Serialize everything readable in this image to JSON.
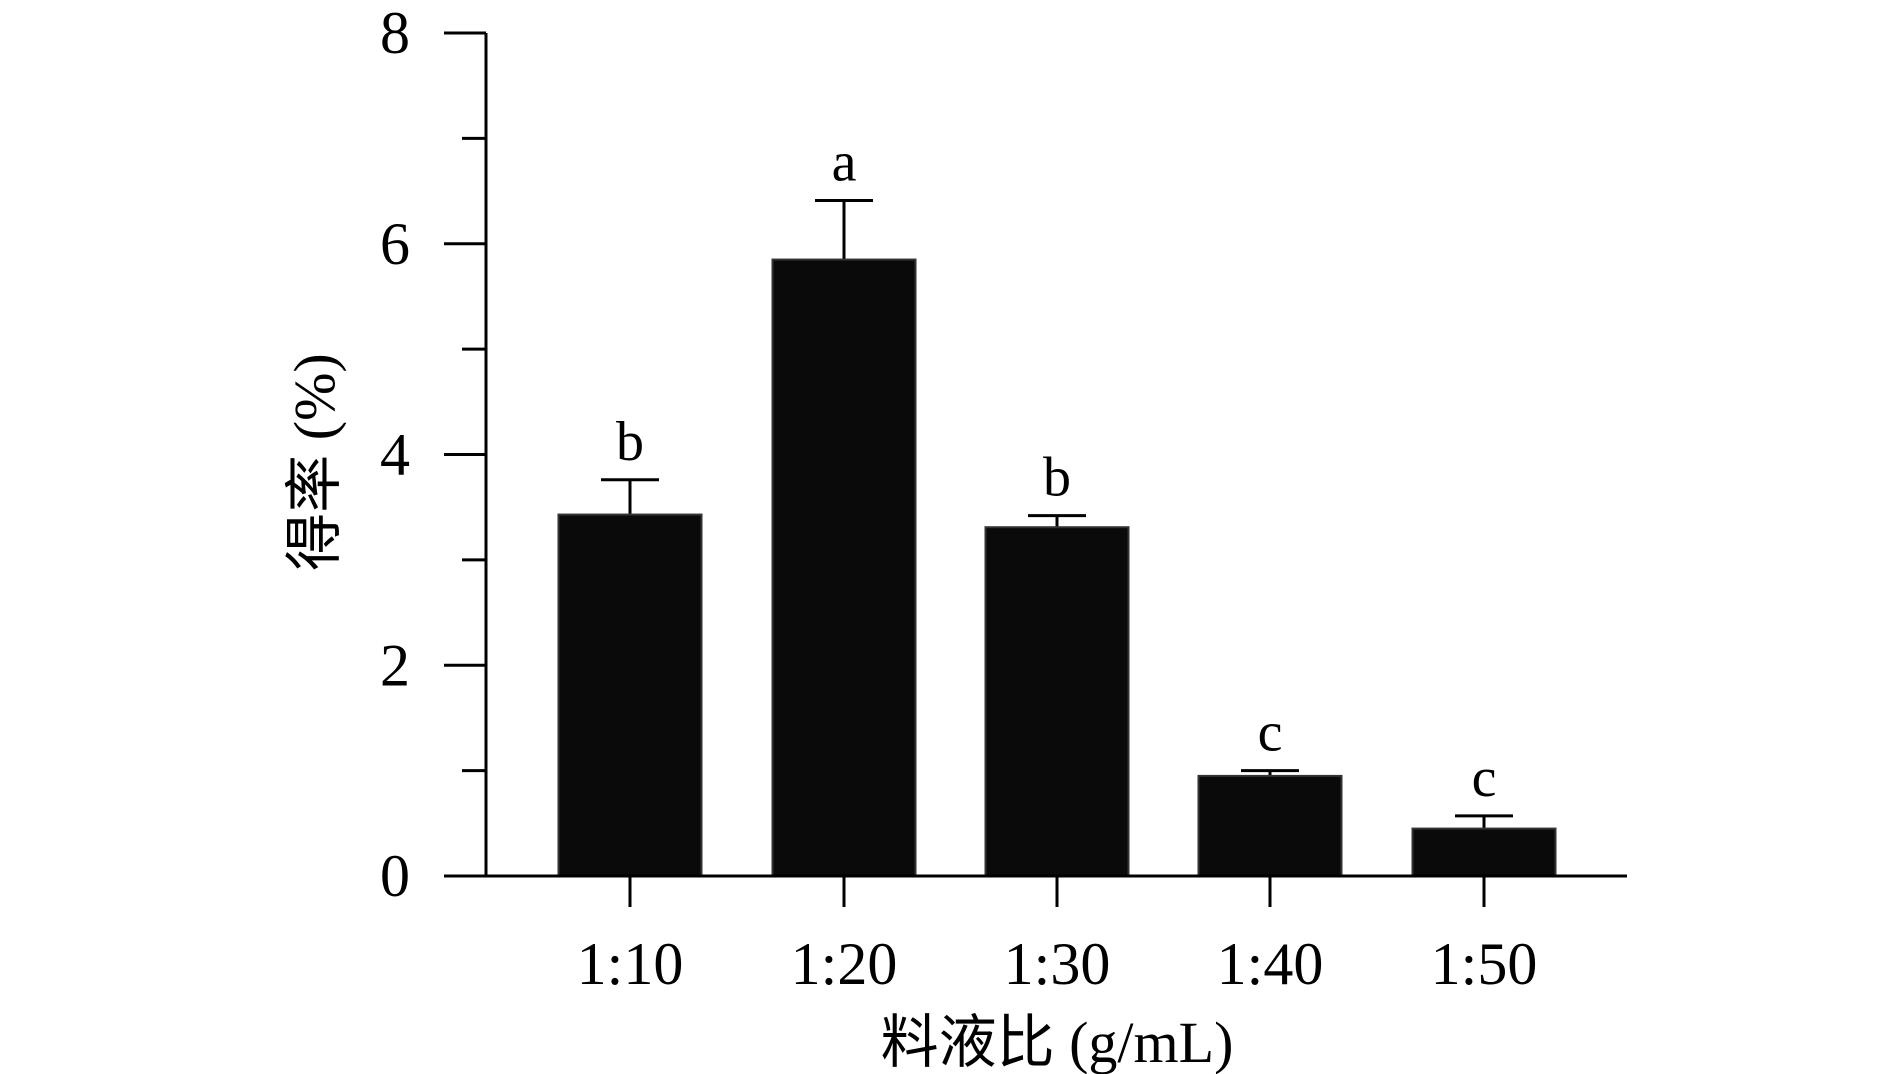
{
  "chart_data": {
    "type": "bar",
    "title": "",
    "xlabel": "料液比 (g/mL)",
    "ylabel": "得率 (%)",
    "categories": [
      "1:10",
      "1:20",
      "1:30",
      "1:40",
      "1:50"
    ],
    "values": [
      3.43,
      5.85,
      3.31,
      0.95,
      0.45
    ],
    "error_upper": [
      3.76,
      6.41,
      3.42,
      1.0,
      0.57
    ],
    "significance_labels": [
      "b",
      "a",
      "b",
      "c",
      "c"
    ],
    "ylim": [
      0,
      8
    ],
    "yticks_major": [
      0,
      2,
      4,
      6,
      8
    ],
    "yticks_minor": [
      1,
      3,
      5,
      7
    ],
    "grid": false,
    "bar_color": "#0a0a0a"
  }
}
